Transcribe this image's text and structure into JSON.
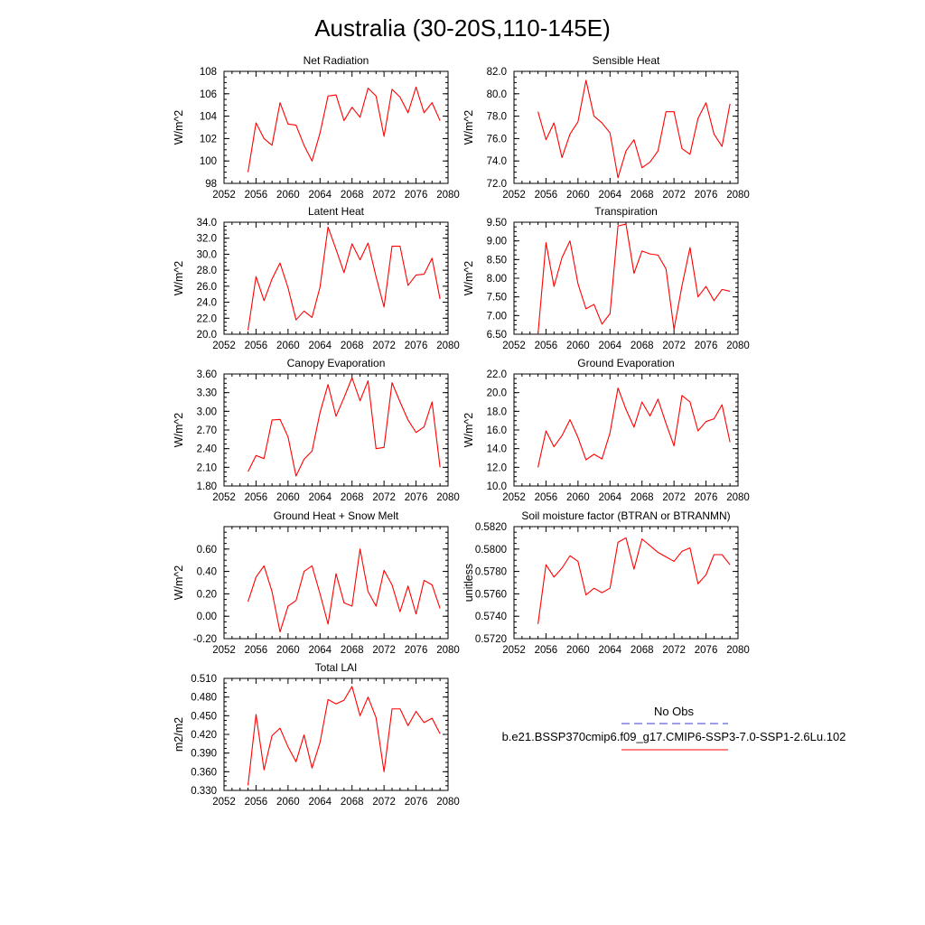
{
  "figure": {
    "title": "Australia (30-20S,110-145E)"
  },
  "legend": {
    "entries": [
      {
        "label": "No Obs",
        "color": "#3b3bd1",
        "style": "dashed"
      },
      {
        "label": "b.e21.BSSP370cmip6.f09_g17.CMIP6-SSP3-7.0-SSP1-2.6Lu.102",
        "color": "#ff0000",
        "style": "solid"
      }
    ]
  },
  "colors": {
    "series": "#ff0000",
    "axis": "#000000"
  },
  "chart_data": [
    {
      "type": "line",
      "title": "Net Radiation",
      "xlabel": "",
      "ylabel": "W/m^2",
      "xlim": [
        2052,
        2080
      ],
      "ylim": [
        98,
        108
      ],
      "xticks": [
        "2052",
        "2056",
        "2060",
        "2064",
        "2068",
        "2072",
        "2076",
        "2080"
      ],
      "yticks": [
        "98",
        "100",
        "102",
        "104",
        "106",
        "108"
      ],
      "x": [
        2055,
        2056,
        2057,
        2058,
        2059,
        2060,
        2061,
        2062,
        2063,
        2064,
        2065,
        2066,
        2067,
        2068,
        2069,
        2070,
        2071,
        2072,
        2073,
        2074,
        2075,
        2076,
        2077,
        2078,
        2079
      ],
      "series": [
        {
          "values": [
            99.0,
            103.4,
            102.0,
            101.4,
            105.2,
            103.3,
            103.2,
            101.4,
            100.0,
            102.5,
            105.8,
            105.9,
            103.6,
            104.8,
            103.9,
            106.5,
            105.8,
            102.2,
            106.4,
            105.7,
            104.3,
            106.6,
            104.3,
            105.2,
            103.6
          ]
        }
      ]
    },
    {
      "type": "line",
      "title": "Sensible Heat",
      "xlabel": "",
      "ylabel": "W/m^2",
      "xlim": [
        2052,
        2080
      ],
      "ylim": [
        72.0,
        82.0
      ],
      "xticks": [
        "2052",
        "2056",
        "2060",
        "2064",
        "2068",
        "2072",
        "2076",
        "2080"
      ],
      "yticks": [
        "72.0",
        "74.0",
        "76.0",
        "78.0",
        "80.0",
        "82.0"
      ],
      "x": [
        2055,
        2056,
        2057,
        2058,
        2059,
        2060,
        2061,
        2062,
        2063,
        2064,
        2065,
        2066,
        2067,
        2068,
        2069,
        2070,
        2071,
        2072,
        2073,
        2074,
        2075,
        2076,
        2077,
        2078,
        2079
      ],
      "series": [
        {
          "values": [
            78.4,
            75.9,
            77.4,
            74.3,
            76.4,
            77.5,
            81.2,
            78.0,
            77.4,
            76.5,
            72.5,
            74.9,
            75.9,
            73.4,
            73.9,
            74.9,
            78.4,
            78.4,
            75.1,
            74.6,
            77.8,
            79.2,
            76.4,
            75.3,
            79.1
          ]
        }
      ]
    },
    {
      "type": "line",
      "title": "Latent Heat",
      "xlabel": "",
      "ylabel": "W/m^2",
      "xlim": [
        2052,
        2080
      ],
      "ylim": [
        20.0,
        34.0
      ],
      "xticks": [
        "2052",
        "2056",
        "2060",
        "2064",
        "2068",
        "2072",
        "2076",
        "2080"
      ],
      "yticks": [
        "20.0",
        "22.0",
        "24.0",
        "26.0",
        "28.0",
        "30.0",
        "32.0",
        "34.0"
      ],
      "x": [
        2055,
        2056,
        2057,
        2058,
        2059,
        2060,
        2061,
        2062,
        2063,
        2064,
        2065,
        2066,
        2067,
        2068,
        2069,
        2070,
        2071,
        2072,
        2073,
        2074,
        2075,
        2076,
        2077,
        2078,
        2079
      ],
      "series": [
        {
          "values": [
            20.5,
            27.2,
            24.2,
            26.9,
            28.9,
            25.8,
            21.8,
            22.9,
            22.1,
            25.9,
            33.4,
            30.6,
            27.7,
            31.3,
            29.3,
            31.4,
            27.2,
            23.4,
            31.0,
            31.0,
            26.1,
            27.4,
            27.5,
            29.5,
            24.4
          ]
        }
      ]
    },
    {
      "type": "line",
      "title": "Transpiration",
      "xlabel": "",
      "ylabel": "W/m^2",
      "xlim": [
        2052,
        2080
      ],
      "ylim": [
        6.5,
        9.5
      ],
      "xticks": [
        "2052",
        "2056",
        "2060",
        "2064",
        "2068",
        "2072",
        "2076",
        "2080"
      ],
      "yticks": [
        "6.50",
        "7.00",
        "7.50",
        "8.00",
        "8.50",
        "9.00",
        "9.50"
      ],
      "x": [
        2055,
        2056,
        2057,
        2058,
        2059,
        2060,
        2061,
        2062,
        2063,
        2064,
        2065,
        2066,
        2067,
        2068,
        2069,
        2070,
        2071,
        2072,
        2073,
        2074,
        2075,
        2076,
        2077,
        2078,
        2079
      ],
      "series": [
        {
          "values": [
            6.5,
            8.95,
            7.78,
            8.55,
            9.0,
            7.85,
            7.18,
            7.3,
            6.77,
            7.05,
            9.4,
            9.45,
            8.13,
            8.73,
            8.65,
            8.62,
            8.25,
            6.63,
            7.8,
            8.82,
            7.5,
            7.78,
            7.4,
            7.7,
            7.65
          ]
        }
      ]
    },
    {
      "type": "line",
      "title": "Canopy Evaporation",
      "xlabel": "",
      "ylabel": "W/m^2",
      "xlim": [
        2052,
        2080
      ],
      "ylim": [
        1.8,
        3.6
      ],
      "xticks": [
        "2052",
        "2056",
        "2060",
        "2064",
        "2068",
        "2072",
        "2076",
        "2080"
      ],
      "yticks": [
        "1.80",
        "2.10",
        "2.40",
        "2.70",
        "3.00",
        "3.30",
        "3.60"
      ],
      "x": [
        2055,
        2056,
        2057,
        2058,
        2059,
        2060,
        2061,
        2062,
        2063,
        2064,
        2065,
        2066,
        2067,
        2068,
        2069,
        2070,
        2071,
        2072,
        2073,
        2074,
        2075,
        2076,
        2077,
        2078,
        2079
      ],
      "series": [
        {
          "values": [
            2.03,
            2.29,
            2.24,
            2.86,
            2.87,
            2.59,
            1.96,
            2.23,
            2.36,
            2.98,
            3.43,
            2.92,
            3.22,
            3.54,
            3.17,
            3.49,
            2.4,
            2.42,
            3.46,
            3.15,
            2.86,
            2.66,
            2.75,
            3.15,
            2.1
          ]
        }
      ]
    },
    {
      "type": "line",
      "title": "Ground Evaporation",
      "xlabel": "",
      "ylabel": "W/m^2",
      "xlim": [
        2052,
        2080
      ],
      "ylim": [
        10.0,
        22.0
      ],
      "xticks": [
        "2052",
        "2056",
        "2060",
        "2064",
        "2068",
        "2072",
        "2076",
        "2080"
      ],
      "yticks": [
        "10.0",
        "12.0",
        "14.0",
        "16.0",
        "18.0",
        "20.0",
        "22.0"
      ],
      "x": [
        2055,
        2056,
        2057,
        2058,
        2059,
        2060,
        2061,
        2062,
        2063,
        2064,
        2065,
        2066,
        2067,
        2068,
        2069,
        2070,
        2071,
        2072,
        2073,
        2074,
        2075,
        2076,
        2077,
        2078,
        2079
      ],
      "series": [
        {
          "values": [
            12.0,
            15.9,
            14.2,
            15.4,
            17.1,
            15.2,
            12.8,
            13.4,
            12.9,
            15.7,
            20.5,
            18.2,
            16.3,
            19.0,
            17.5,
            19.3,
            16.7,
            14.3,
            19.7,
            19.0,
            15.9,
            16.9,
            17.2,
            18.7,
            14.7
          ]
        }
      ]
    },
    {
      "type": "line",
      "title": "Ground Heat + Snow Melt",
      "xlabel": "",
      "ylabel": "W/m^2",
      "xlim": [
        2052,
        2080
      ],
      "ylim": [
        -0.2,
        0.8
      ],
      "xticks": [
        "2052",
        "2056",
        "2060",
        "2064",
        "2068",
        "2072",
        "2076",
        "2080"
      ],
      "yticks": [
        "-0.20",
        "0.00",
        "0.20",
        "0.40",
        "0.60"
      ],
      "x": [
        2055,
        2056,
        2057,
        2058,
        2059,
        2060,
        2061,
        2062,
        2063,
        2064,
        2065,
        2066,
        2067,
        2068,
        2069,
        2070,
        2071,
        2072,
        2073,
        2074,
        2075,
        2076,
        2077,
        2078,
        2079
      ],
      "series": [
        {
          "values": [
            0.13,
            0.35,
            0.45,
            0.22,
            -0.14,
            0.09,
            0.14,
            0.4,
            0.45,
            0.2,
            -0.07,
            0.38,
            0.12,
            0.09,
            0.6,
            0.22,
            0.09,
            0.41,
            0.28,
            0.04,
            0.27,
            0.02,
            0.32,
            0.28,
            0.07
          ]
        }
      ]
    },
    {
      "type": "line",
      "title": "Soil moisture factor (BTRAN or BTRANMN)",
      "xlabel": "",
      "ylabel": "unitless",
      "xlim": [
        2052,
        2080
      ],
      "ylim": [
        0.572,
        0.582
      ],
      "xticks": [
        "2052",
        "2056",
        "2060",
        "2064",
        "2068",
        "2072",
        "2076",
        "2080"
      ],
      "yticks": [
        "0.5720",
        "0.5740",
        "0.5760",
        "0.5780",
        "0.5800",
        "0.5820"
      ],
      "x": [
        2055,
        2056,
        2057,
        2058,
        2059,
        2060,
        2061,
        2062,
        2063,
        2064,
        2065,
        2066,
        2067,
        2068,
        2069,
        2070,
        2071,
        2072,
        2073,
        2074,
        2075,
        2076,
        2077,
        2078,
        2079
      ],
      "series": [
        {
          "values": [
            0.5733,
            0.5786,
            0.5775,
            0.5783,
            0.5794,
            0.5789,
            0.5759,
            0.5765,
            0.5761,
            0.5765,
            0.5806,
            0.581,
            0.5782,
            0.5809,
            0.5803,
            0.5797,
            0.5793,
            0.5789,
            0.5798,
            0.5801,
            0.5769,
            0.5777,
            0.5795,
            0.5795,
            0.5786
          ]
        }
      ]
    },
    {
      "type": "line",
      "title": "Total LAI",
      "xlabel": "",
      "ylabel": "m2/m2",
      "xlim": [
        2052,
        2080
      ],
      "ylim": [
        0.33,
        0.51
      ],
      "xticks": [
        "2052",
        "2056",
        "2060",
        "2064",
        "2068",
        "2072",
        "2076",
        "2080"
      ],
      "yticks": [
        "0.330",
        "0.360",
        "0.390",
        "0.420",
        "0.450",
        "0.480",
        "0.510"
      ],
      "x": [
        2055,
        2056,
        2057,
        2058,
        2059,
        2060,
        2061,
        2062,
        2063,
        2064,
        2065,
        2066,
        2067,
        2068,
        2069,
        2070,
        2071,
        2072,
        2073,
        2074,
        2075,
        2076,
        2077,
        2078,
        2079
      ],
      "series": [
        {
          "values": [
            0.338,
            0.452,
            0.363,
            0.418,
            0.43,
            0.4,
            0.376,
            0.419,
            0.366,
            0.407,
            0.476,
            0.469,
            0.475,
            0.497,
            0.45,
            0.48,
            0.447,
            0.36,
            0.461,
            0.461,
            0.434,
            0.457,
            0.439,
            0.446,
            0.421
          ]
        }
      ]
    }
  ]
}
